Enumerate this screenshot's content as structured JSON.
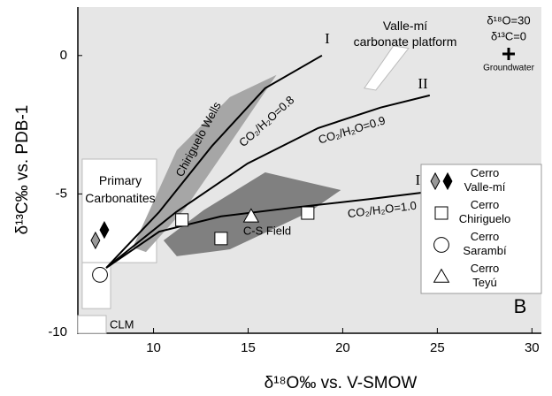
{
  "chart_data": {
    "type": "scatter",
    "xlabel": "δ¹⁸O‰ vs. V-SMOW",
    "ylabel": "δ¹³C‰ vs. PDB-1",
    "panel": "B",
    "xlim": [
      6,
      30.5
    ],
    "ylim": [
      -10,
      1.75
    ],
    "xticks": [
      10,
      15,
      20,
      25,
      30
    ],
    "yticks": [
      0,
      -5,
      -10
    ],
    "background": "#e6e6e6",
    "regions": [
      {
        "name": "Primary Carbonatites",
        "color": "#ffffff",
        "x": [
          6.23,
          10.16,
          10.16,
          6.23
        ],
        "y": [
          -3.74,
          -3.74,
          -7.48,
          -7.48
        ]
      },
      {
        "name": "CLM",
        "color": "#ffffff",
        "x": [
          6.23,
          7.73,
          7.73,
          6.23
        ],
        "y": [
          -7.48,
          -7.48,
          -9.14,
          -9.14
        ]
      },
      {
        "name": "Chiriguelo Wells",
        "color": "#a6a6a6",
        "x": [
          8.9,
          11.23,
          14.04,
          16.5,
          13.8,
          11.7,
          9.6
        ],
        "y": [
          -6.93,
          -3.42,
          -1.5,
          -0.7,
          -3.42,
          -5.5,
          -7.1
        ]
      },
      {
        "name": "C-S Field",
        "color": "#808080",
        "x": [
          10.53,
          12.64,
          15.9,
          19.9,
          18.24,
          14.04,
          11.23
        ],
        "y": [
          -6.68,
          -5.59,
          -4.22,
          -4.86,
          -5.65,
          -7.0,
          -7.25
        ]
      },
      {
        "name": "Valle-mí carbonate platform",
        "color": "#ffffff",
        "x": [
          21.14,
          22.68,
          23.48,
          21.75
        ],
        "y": [
          -1.18,
          0.35,
          0.26,
          -1.25
        ]
      }
    ],
    "lines": [
      {
        "name": "I",
        "label": "CO₂/H₂O=0.8",
        "color": "#000000",
        "x": [
          7.5,
          10.3,
          13.1,
          15.9,
          18.9
        ],
        "y": [
          -7.67,
          -5.65,
          -3.26,
          -1.18,
          0.0
        ]
      },
      {
        "name": "II",
        "label": "CO₂/H₂O=0.9",
        "color": "#000000",
        "x": [
          7.5,
          11.2,
          14.97,
          18.7,
          22.0,
          24.6
        ],
        "y": [
          -7.67,
          -5.65,
          -3.9,
          -2.62,
          -1.88,
          -1.44
        ]
      },
      {
        "name": "III",
        "label": "CO₂/H₂O=1.0",
        "color": "#000000",
        "x": [
          7.5,
          10.3,
          13.57,
          17.3,
          21.5,
          24.6
        ],
        "y": [
          -7.67,
          -6.36,
          -5.81,
          -5.5,
          -5.18,
          -4.92
        ]
      }
    ],
    "series": [
      {
        "name": "Cerro Valle-mí",
        "marker": "diamond",
        "colors": [
          "#999999",
          "#000000"
        ],
        "x": [
          6.93,
          7.4
        ],
        "y": [
          -6.68,
          -6.3
        ]
      },
      {
        "name": "Cerro Chiriguelo",
        "marker": "square",
        "colors": [
          "#ffffff",
          "#ffffff",
          "#ffffff"
        ],
        "x": [
          11.5,
          13.57,
          18.15
        ],
        "y": [
          -5.94,
          -6.61,
          -5.69
        ]
      },
      {
        "name": "Cerro Sarambí",
        "marker": "circle",
        "colors": [
          "#ffffff"
        ],
        "x": [
          7.17
        ],
        "y": [
          -7.92
        ]
      },
      {
        "name": "Cerro Teyú",
        "marker": "triangle",
        "colors": [
          "#ffffff"
        ],
        "x": [
          15.16
        ],
        "y": [
          -5.81
        ]
      }
    ],
    "groundwater": {
      "lines": [
        "δ¹⁸O=30",
        "δ¹³C=0"
      ],
      "name": "Groundwater"
    }
  }
}
